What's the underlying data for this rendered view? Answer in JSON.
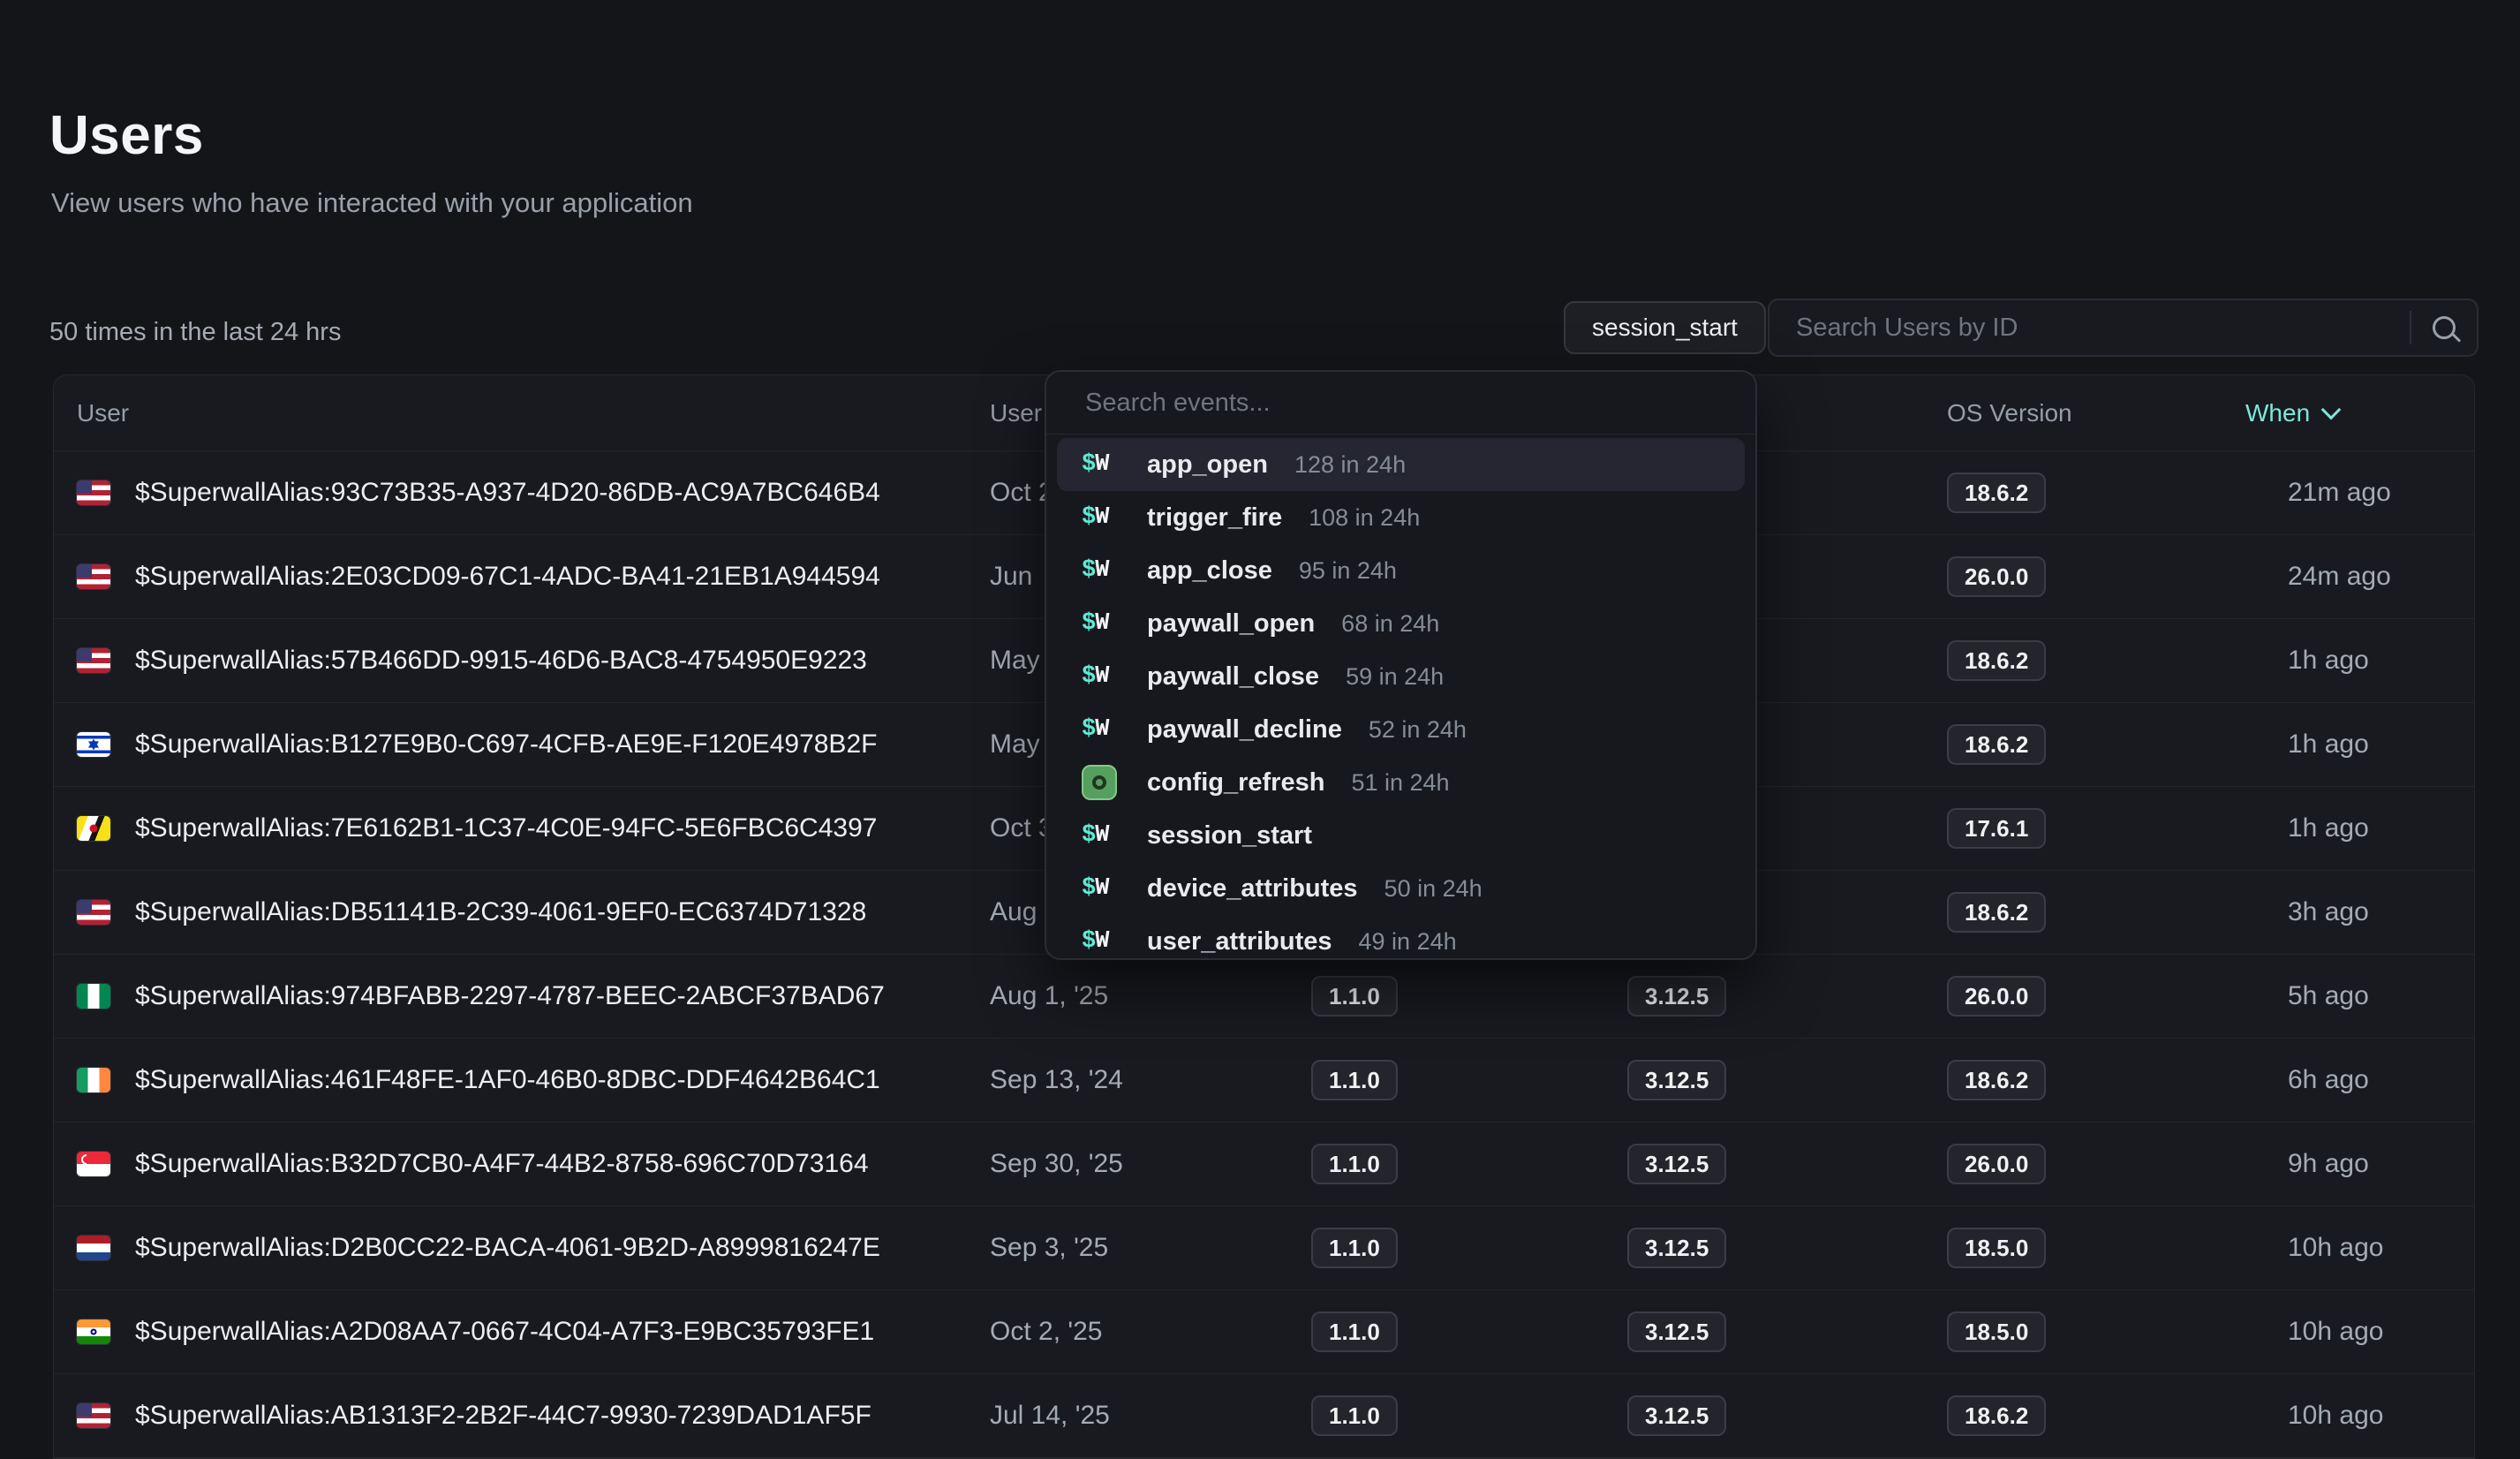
{
  "page": {
    "title": "Users",
    "subtitle": "View users who have interacted with your application"
  },
  "toolbar": {
    "stats_label": "50 times in the last 24 hrs",
    "event_filter_label": "session_start",
    "user_search_placeholder": "Search Users by ID"
  },
  "events_dropdown": {
    "search_placeholder": "Search events...",
    "items": [
      {
        "icon": "sw",
        "label": "app_open",
        "count": "128 in 24h",
        "highlighted": true
      },
      {
        "icon": "sw",
        "label": "trigger_fire",
        "count": "108 in 24h",
        "highlighted": false
      },
      {
        "icon": "sw",
        "label": "app_close",
        "count": "95 in 24h",
        "highlighted": false
      },
      {
        "icon": "sw",
        "label": "paywall_open",
        "count": "68 in 24h",
        "highlighted": false
      },
      {
        "icon": "sw",
        "label": "paywall_close",
        "count": "59 in 24h",
        "highlighted": false
      },
      {
        "icon": "sw",
        "label": "paywall_decline",
        "count": "52 in 24h",
        "highlighted": false
      },
      {
        "icon": "config",
        "label": "config_refresh",
        "count": "51 in 24h",
        "highlighted": false
      },
      {
        "icon": "sw",
        "label": "session_start",
        "count": "",
        "highlighted": false
      },
      {
        "icon": "sw",
        "label": "device_attributes",
        "count": "50 in 24h",
        "highlighted": false
      },
      {
        "icon": "sw",
        "label": "user_attributes",
        "count": "49 in 24h",
        "highlighted": false
      }
    ]
  },
  "table": {
    "headers": {
      "user": "User",
      "user_since": "User Since",
      "app_version": "",
      "sdk_version": "",
      "os_version": "OS Version",
      "when": "When"
    },
    "rows": [
      {
        "flag": "us",
        "alias": "$SuperwallAlias:93C73B35-A937-4D20-86DB-AC9A7BC646B4",
        "user_since": "Oct 2",
        "app_version": "",
        "sdk_version": "",
        "os_version": "18.6.2",
        "when": "21m ago"
      },
      {
        "flag": "us",
        "alias": "$SuperwallAlias:2E03CD09-67C1-4ADC-BA41-21EB1A944594",
        "user_since": "Jun",
        "app_version": "",
        "sdk_version": "",
        "os_version": "26.0.0",
        "when": "24m ago"
      },
      {
        "flag": "us",
        "alias": "$SuperwallAlias:57B466DD-9915-46D6-BAC8-4754950E9223",
        "user_since": "May",
        "app_version": "",
        "sdk_version": "",
        "os_version": "18.6.2",
        "when": "1h ago"
      },
      {
        "flag": "il",
        "alias": "$SuperwallAlias:B127E9B0-C697-4CFB-AE9E-F120E4978B2F",
        "user_since": "May",
        "app_version": "",
        "sdk_version": "",
        "os_version": "18.6.2",
        "when": "1h ago"
      },
      {
        "flag": "bn",
        "alias": "$SuperwallAlias:7E6162B1-1C37-4C0E-94FC-5E6FBC6C4397",
        "user_since": "Oct 3",
        "app_version": "",
        "sdk_version": "",
        "os_version": "17.6.1",
        "when": "1h ago"
      },
      {
        "flag": "us",
        "alias": "$SuperwallAlias:DB51141B-2C39-4061-9EF0-EC6374D71328",
        "user_since": "Aug",
        "app_version": "",
        "sdk_version": "",
        "os_version": "18.6.2",
        "when": "3h ago"
      },
      {
        "flag": "ng",
        "alias": "$SuperwallAlias:974BFABB-2297-4787-BEEC-2ABCF37BAD67",
        "user_since": "Aug 1, '25",
        "app_version": "1.1.0",
        "sdk_version": "3.12.5",
        "os_version": "26.0.0",
        "when": "5h ago"
      },
      {
        "flag": "ie",
        "alias": "$SuperwallAlias:461F48FE-1AF0-46B0-8DBC-DDF4642B64C1",
        "user_since": "Sep 13, '24",
        "app_version": "1.1.0",
        "sdk_version": "3.12.5",
        "os_version": "18.6.2",
        "when": "6h ago"
      },
      {
        "flag": "sg",
        "alias": "$SuperwallAlias:B32D7CB0-A4F7-44B2-8758-696C70D73164",
        "user_since": "Sep 30, '25",
        "app_version": "1.1.0",
        "sdk_version": "3.12.5",
        "os_version": "26.0.0",
        "when": "9h ago"
      },
      {
        "flag": "nl",
        "alias": "$SuperwallAlias:D2B0CC22-BACA-4061-9B2D-A8999816247E",
        "user_since": "Sep 3, '25",
        "app_version": "1.1.0",
        "sdk_version": "3.12.5",
        "os_version": "18.5.0",
        "when": "10h ago"
      },
      {
        "flag": "in",
        "alias": "$SuperwallAlias:A2D08AA7-0667-4C04-A7F3-E9BC35793FE1",
        "user_since": "Oct 2, '25",
        "app_version": "1.1.0",
        "sdk_version": "3.12.5",
        "os_version": "18.5.0",
        "when": "10h ago"
      },
      {
        "flag": "us",
        "alias": "$SuperwallAlias:AB1313F2-2B2F-44C7-9930-7239DAD1AF5F",
        "user_since": "Jul 14, '25",
        "app_version": "1.1.0",
        "sdk_version": "3.12.5",
        "os_version": "18.6.2",
        "when": "10h ago"
      }
    ]
  },
  "colors": {
    "accent_teal": "#7ce9d9",
    "config_icon_green": "#55a05e",
    "sw_dollar_teal": "#5eead4"
  }
}
